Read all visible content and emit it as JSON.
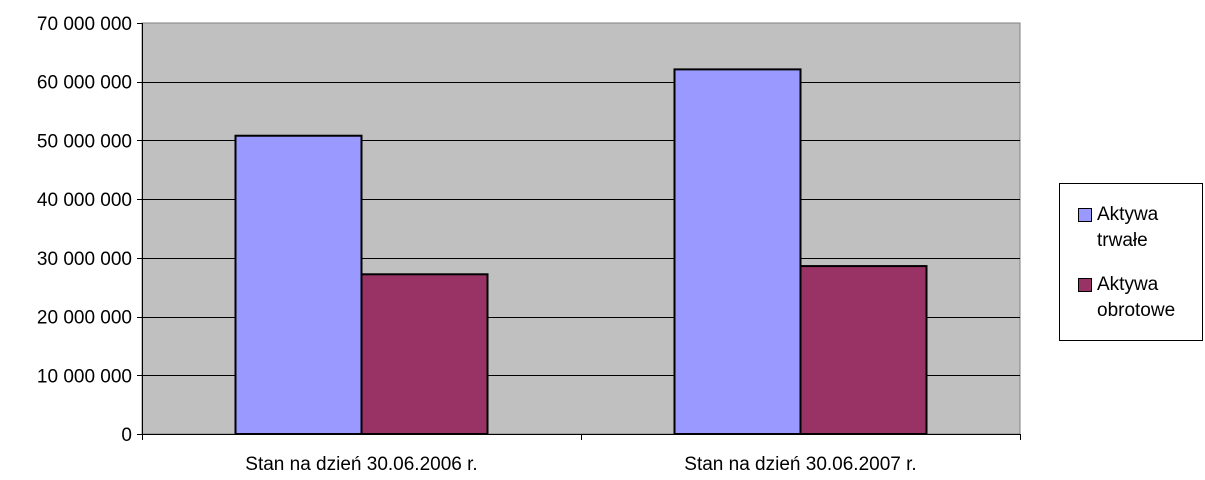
{
  "chart_data": {
    "type": "bar",
    "categories": [
      "Stan na dzień 30.06.2006 r.",
      "Stan na dzień 30.06.2007 r."
    ],
    "series": [
      {
        "name": "Aktywa trwałe",
        "values": [
          50800000,
          62100000
        ],
        "color": "#9999ff"
      },
      {
        "name": "Aktywa obrotowe",
        "values": [
          27200000,
          28600000
        ],
        "color": "#993366"
      }
    ],
    "ylim": [
      0,
      70000000
    ],
    "yticks": [
      0,
      10000000,
      20000000,
      30000000,
      40000000,
      50000000,
      60000000,
      70000000
    ],
    "ytick_labels": [
      "0",
      "10 000 000",
      "20 000 000",
      "30 000 000",
      "40 000 000",
      "50 000 000",
      "60 000 000",
      "70 000 000"
    ],
    "plot_background": "#c0c0c0",
    "grid": true,
    "legend_position": "right"
  }
}
